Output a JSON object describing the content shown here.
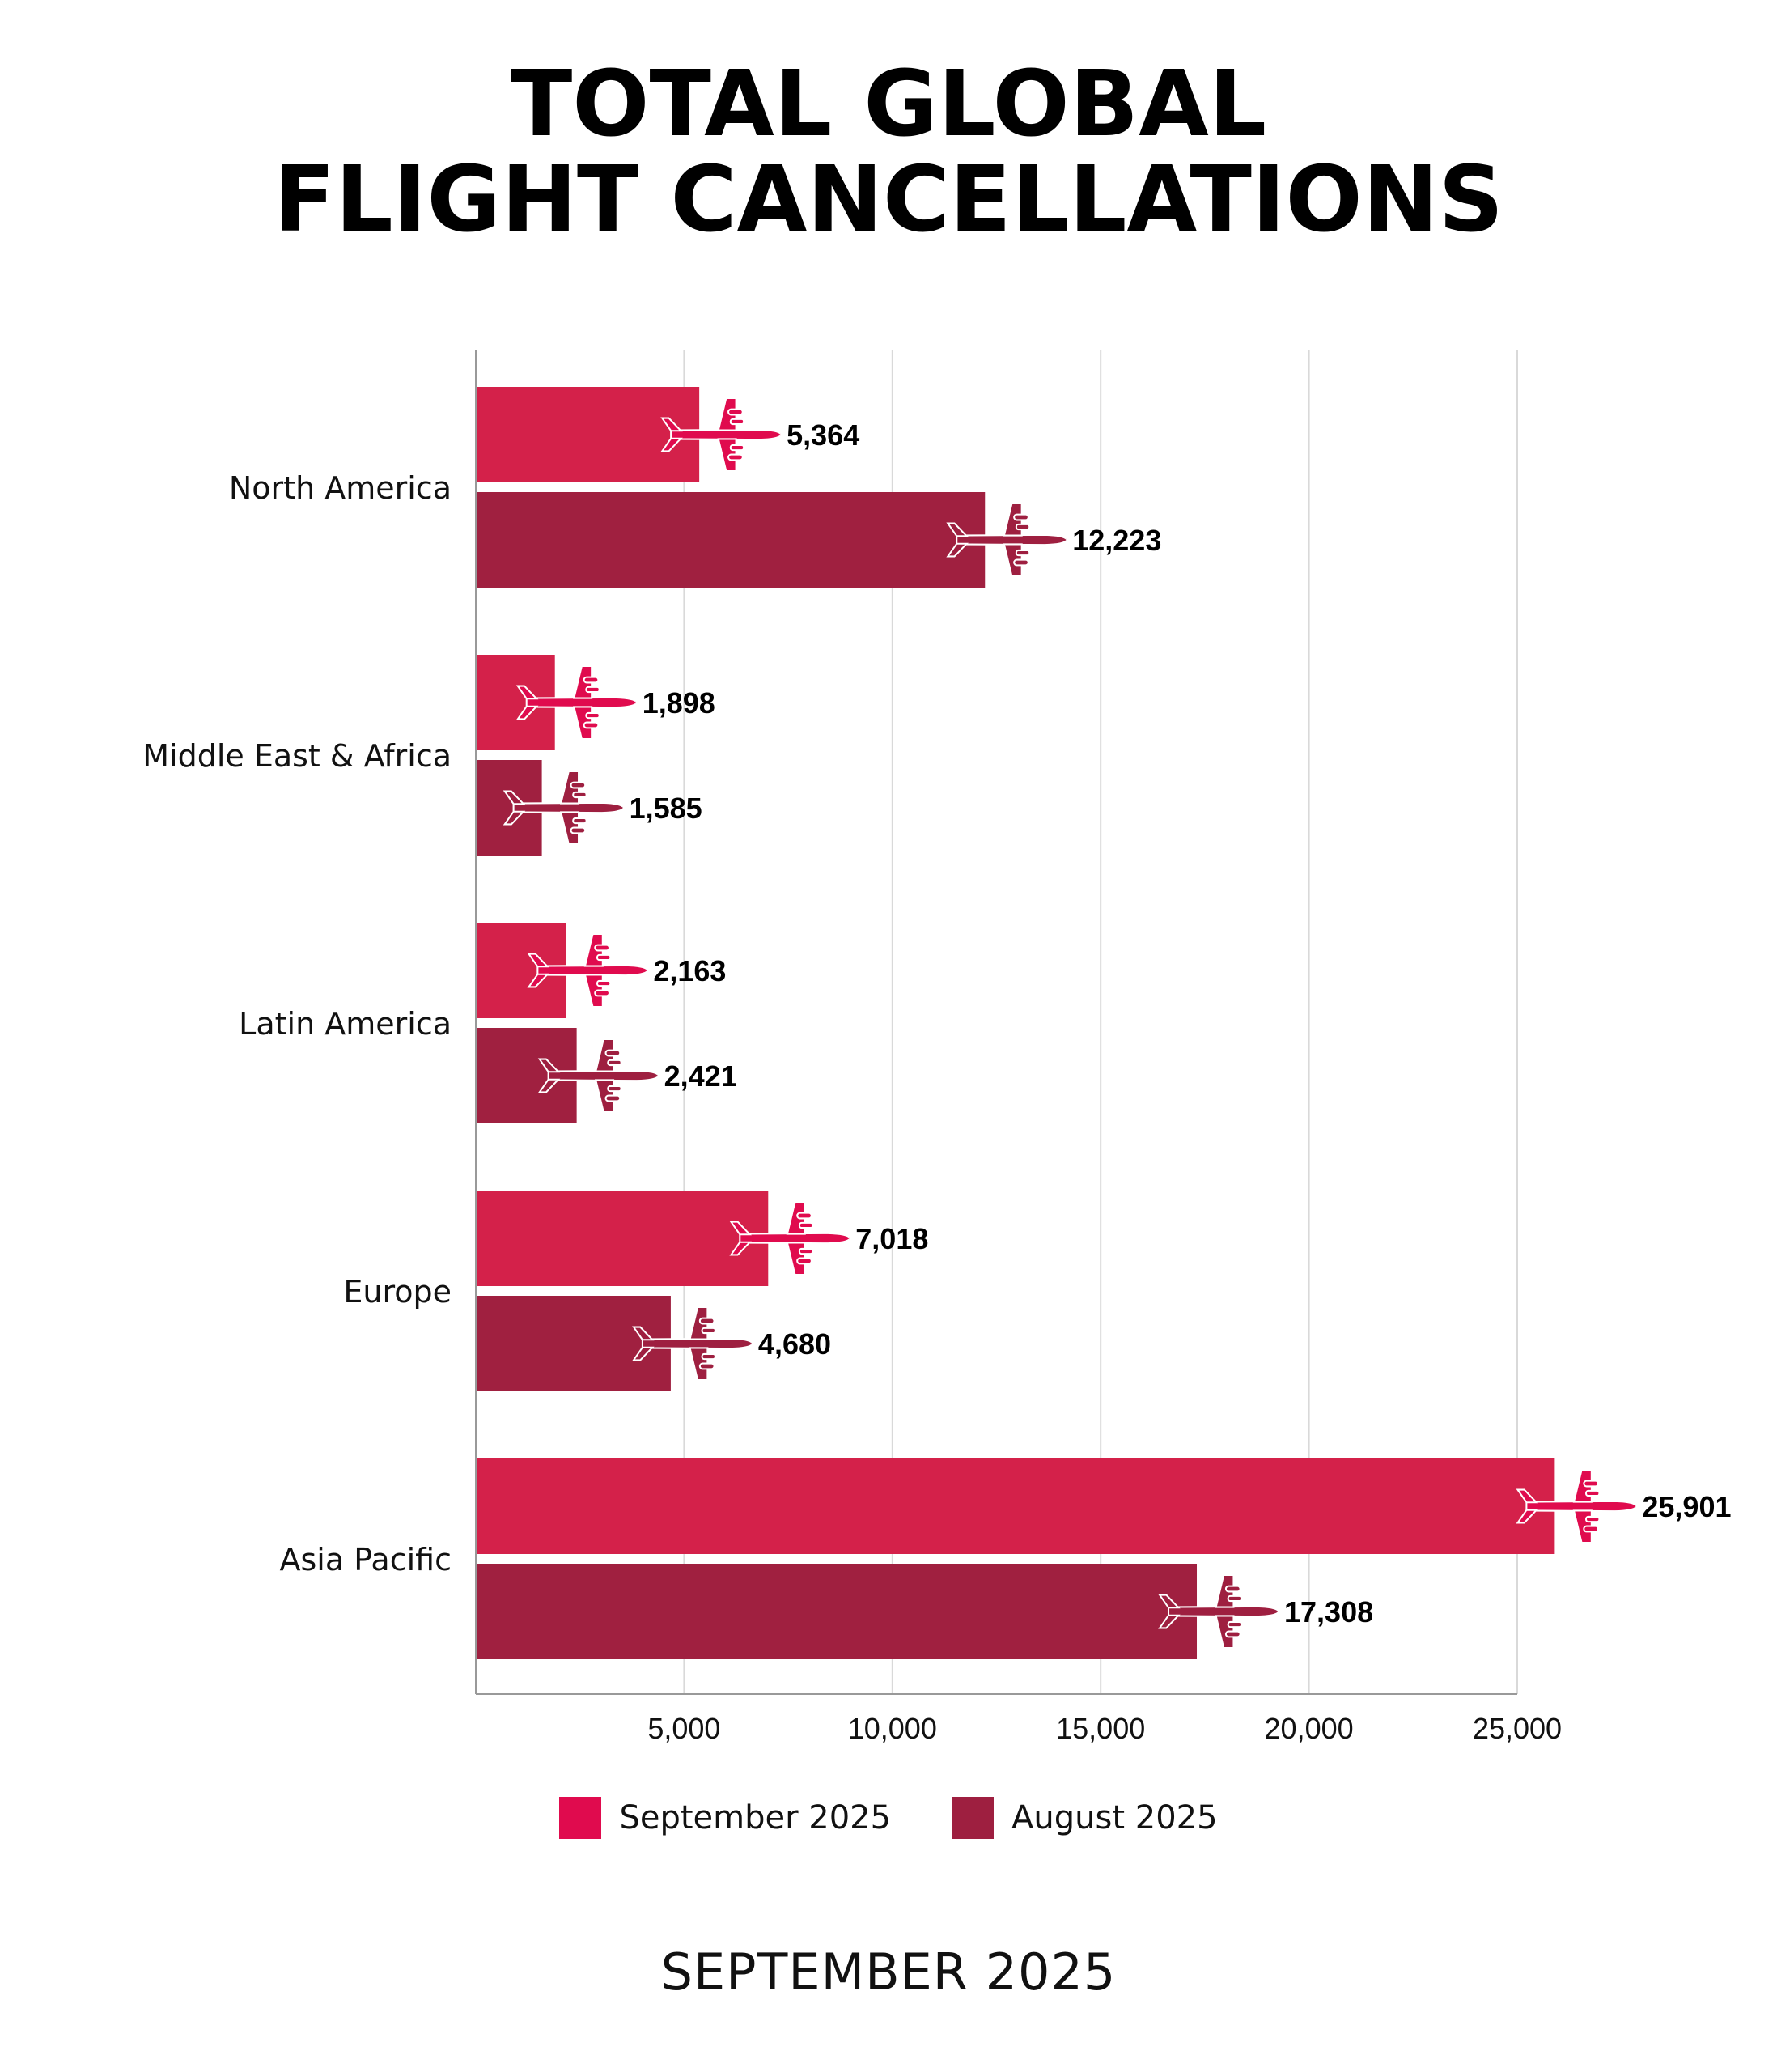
{
  "title": {
    "line1": "TOTAL GLOBAL",
    "line2": "FLIGHT CANCELLATIONS"
  },
  "footer": "SEPTEMBER 2025",
  "colors": {
    "september_bar": "#D4214A",
    "september_plane": "#E00B4E",
    "august_bar": "#A02040",
    "august_plane": "#9E1F40",
    "grid": "#D9D9D9",
    "axis": "#999999"
  },
  "legend": {
    "september": "September 2025",
    "august": "August 2025"
  },
  "chart_data": {
    "type": "bar",
    "orientation": "horizontal",
    "title": "TOTAL GLOBAL FLIGHT CANCELLATIONS",
    "categories": [
      "North America",
      "Middle East & Africa",
      "Latin America",
      "Europe",
      "Asia Pacific"
    ],
    "series": [
      {
        "name": "September 2025",
        "values": [
          5364,
          1898,
          2163,
          7018,
          25901
        ],
        "labels": [
          "5,364",
          "1,898",
          "2,163",
          "7,018",
          "25,901"
        ]
      },
      {
        "name": "August 2025",
        "values": [
          12223,
          1585,
          2421,
          4680,
          17308
        ],
        "labels": [
          "12,223",
          "1,585",
          "2,421",
          "4,680",
          "17,308"
        ]
      }
    ],
    "xlim": [
      0,
      25000
    ],
    "xticks": [
      5000,
      10000,
      15000,
      20000,
      25000
    ],
    "xtick_labels": [
      "5,000",
      "10,000",
      "15,000",
      "20,000",
      "25,000"
    ],
    "xlabel": "",
    "ylabel": "",
    "grid": true,
    "legend_position": "bottom"
  }
}
